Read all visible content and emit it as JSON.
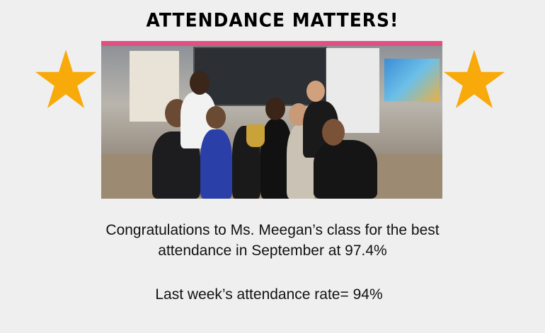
{
  "title": "ATTENDANCE MATTERS!",
  "colors": {
    "background": "#efefef",
    "star": "#f7aa0a",
    "text": "#111111"
  },
  "icons": {
    "left": "star-icon",
    "right": "star-icon"
  },
  "message": {
    "line1": "Congratulations to Ms. Meegan’s class for the best",
    "line2": "attendance in September at 97.4%",
    "weekly": "Last week’s attendance rate= 94%"
  }
}
